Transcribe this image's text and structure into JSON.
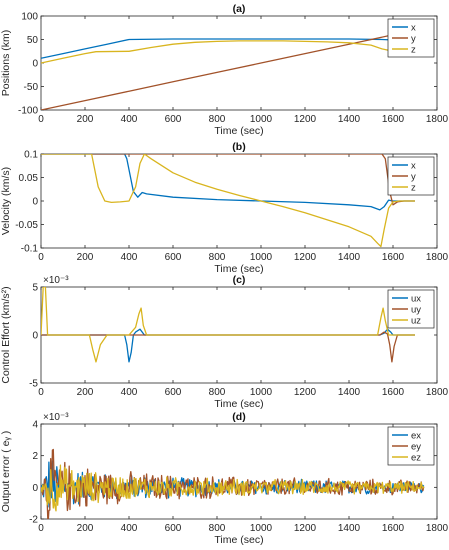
{
  "chart_data": [
    {
      "type": "line",
      "title": "(a)",
      "xlabel": "Time (sec)",
      "ylabel": "Positions (km)",
      "xlim": [
        0,
        1800
      ],
      "ylim": [
        -100,
        100
      ],
      "xticks": [
        0,
        200,
        400,
        600,
        800,
        1000,
        1200,
        1400,
        1600,
        1800
      ],
      "yticks": [
        -100,
        -50,
        0,
        50,
        100
      ],
      "ytick_labels": [
        "-100",
        "-50",
        "0",
        "50",
        "100"
      ],
      "exponent_label": "",
      "grid": false,
      "legend_position": "top-right",
      "series": [
        {
          "name": "x",
          "color": "#0072BD",
          "x": [
            0,
            100,
            200,
            300,
            400,
            600,
            800,
            1000,
            1200,
            1400,
            1550,
            1600,
            1650
          ],
          "y": [
            10,
            20,
            30,
            40,
            50,
            51,
            51,
            51,
            51,
            51,
            50,
            49,
            48
          ]
        },
        {
          "name": "y",
          "color": "#A2522A",
          "x": [
            0,
            200,
            400,
            600,
            800,
            1000,
            1200,
            1400,
            1600,
            1650
          ],
          "y": [
            -100,
            -80,
            -60,
            -40,
            -20,
            0,
            20,
            40,
            60,
            62
          ]
        },
        {
          "name": "z",
          "color": "#D9B51F",
          "x": [
            0,
            100,
            200,
            250,
            400,
            500,
            600,
            700,
            800,
            900,
            1000,
            1100,
            1200,
            1300,
            1400,
            1500,
            1550,
            1600,
            1650
          ],
          "y": [
            0,
            10,
            20,
            24,
            25,
            33,
            40,
            44,
            46,
            47,
            47,
            47,
            46,
            45,
            43,
            38,
            30,
            25,
            25
          ]
        }
      ]
    },
    {
      "type": "line",
      "title": "(b)",
      "xlabel": "Time (sec)",
      "ylabel": "Velocity (km/s)",
      "xlim": [
        0,
        1800
      ],
      "ylim": [
        -0.1,
        0.1
      ],
      "xticks": [
        0,
        200,
        400,
        600,
        800,
        1000,
        1200,
        1400,
        1600,
        1800
      ],
      "yticks": [
        -0.1,
        -0.05,
        0,
        0.05,
        0.1
      ],
      "ytick_labels": [
        "-0.1",
        "-0.05",
        "0",
        "0.05",
        "0.1"
      ],
      "exponent_label": "",
      "grid": false,
      "legend_position": "top-right",
      "series": [
        {
          "name": "x",
          "color": "#0072BD",
          "x": [
            0,
            10,
            20,
            380,
            390,
            420,
            440,
            460,
            480,
            600,
            800,
            1000,
            1200,
            1400,
            1500,
            1540,
            1560,
            1580,
            1600,
            1620,
            1700
          ],
          "y": [
            0.1,
            0.1,
            0.1,
            0.1,
            0.09,
            0.02,
            0.008,
            0.018,
            0.015,
            0.008,
            0.003,
            0.0,
            -0.003,
            -0.008,
            -0.012,
            -0.019,
            -0.012,
            0.002,
            0.0,
            0.0,
            0.0
          ]
        },
        {
          "name": "y",
          "color": "#A2522A",
          "x": [
            0,
            10,
            20,
            1000,
            1550,
            1565,
            1585,
            1600,
            1620,
            1650,
            1700
          ],
          "y": [
            0.1,
            0.1,
            0.1,
            0.1,
            0.1,
            0.09,
            0.02,
            -0.008,
            -0.002,
            0.0,
            0.0
          ]
        },
        {
          "name": "z",
          "color": "#D9B51F",
          "x": [
            0,
            20,
            210,
            230,
            260,
            290,
            320,
            360,
            400,
            430,
            450,
            470,
            500,
            600,
            700,
            800,
            900,
            1000,
            1100,
            1200,
            1300,
            1400,
            1500,
            1530,
            1545,
            1560,
            1580,
            1600,
            1630,
            1700
          ],
          "y": [
            0.1,
            0.1,
            0.1,
            0.1,
            0.03,
            0.0,
            -0.003,
            -0.002,
            0.0,
            0.03,
            0.08,
            0.1,
            0.09,
            0.06,
            0.04,
            0.025,
            0.012,
            0.0,
            -0.012,
            -0.025,
            -0.04,
            -0.055,
            -0.075,
            -0.09,
            -0.097,
            -0.06,
            -0.015,
            -0.002,
            0.0,
            0.0
          ]
        }
      ]
    },
    {
      "type": "line",
      "title": "(c)",
      "xlabel": "Time (sec)",
      "ylabel": "Control Effort (km/s²)",
      "xlim": [
        0,
        1800
      ],
      "ylim": [
        -0.005,
        0.005
      ],
      "xticks": [
        0,
        200,
        400,
        600,
        800,
        1000,
        1200,
        1400,
        1600,
        1800
      ],
      "yticks": [
        -0.005,
        0,
        0.005
      ],
      "ytick_labels": [
        "-5",
        "0",
        "5"
      ],
      "exponent_label": "×10⁻³",
      "grid": false,
      "legend_position": "top-right",
      "series": [
        {
          "name": "ux",
          "color": "#0072BD",
          "x": [
            0,
            380,
            390,
            400,
            410,
            420,
            430,
            450,
            470,
            1540,
            1560,
            1575,
            1590,
            1600,
            1700
          ],
          "y": [
            0,
            0,
            -0.001,
            -0.0028,
            -0.0018,
            0,
            0.0003,
            0.0006,
            0,
            0,
            0.0002,
            0.0006,
            0.0003,
            0,
            0
          ]
        },
        {
          "name": "uy",
          "color": "#A2522A",
          "x": [
            0,
            1540,
            1560,
            1575,
            1585,
            1595,
            1605,
            1620,
            1700
          ],
          "y": [
            0,
            0,
            0.0003,
            0.0001,
            -0.001,
            -0.0028,
            -0.0012,
            0,
            0
          ]
        },
        {
          "name": "uz",
          "color": "#D9B51F",
          "x": [
            0,
            10,
            20,
            30,
            220,
            235,
            250,
            270,
            300,
            400,
            430,
            445,
            455,
            465,
            480,
            1530,
            1545,
            1555,
            1565,
            1580,
            1600,
            1700
          ],
          "y": [
            0,
            0.005,
            0.005,
            0,
            0,
            -0.0015,
            -0.0028,
            -0.001,
            0,
            0,
            0.0008,
            0.0022,
            0.0028,
            0.001,
            0,
            0,
            0.0018,
            0.0028,
            0.0015,
            0,
            0,
            0
          ]
        }
      ]
    },
    {
      "type": "line",
      "title": "(d)",
      "xlabel": "Time (sec)",
      "ylabel": "Output error ( eᵧ )",
      "xlim": [
        0,
        1800
      ],
      "ylim": [
        -0.002,
        0.004
      ],
      "xticks": [
        0,
        200,
        400,
        600,
        800,
        1000,
        1200,
        1400,
        1600,
        1800
      ],
      "yticks": [
        -0.002,
        0,
        0.002,
        0.004
      ],
      "ytick_labels": [
        "-2",
        "0",
        "2",
        "4"
      ],
      "exponent_label": "×10⁻³",
      "grid": false,
      "legend_position": "top-right",
      "noise_envelope": {
        "x": [
          0,
          30,
          100,
          300,
          600,
          1000,
          1400,
          1740
        ],
        "amp": [
          0.0,
          0.003,
          0.0019,
          0.0012,
          0.0009,
          0.0007,
          0.0006,
          0.0005
        ]
      },
      "series": [
        {
          "name": "ex",
          "color": "#0072BD",
          "x": [
            0,
            1740
          ],
          "y": [
            0,
            0
          ]
        },
        {
          "name": "ey",
          "color": "#A2522A",
          "x": [
            0,
            1740
          ],
          "y": [
            0,
            0
          ]
        },
        {
          "name": "ez",
          "color": "#D9B51F",
          "x": [
            0,
            1740
          ],
          "y": [
            0,
            0
          ]
        }
      ]
    }
  ]
}
